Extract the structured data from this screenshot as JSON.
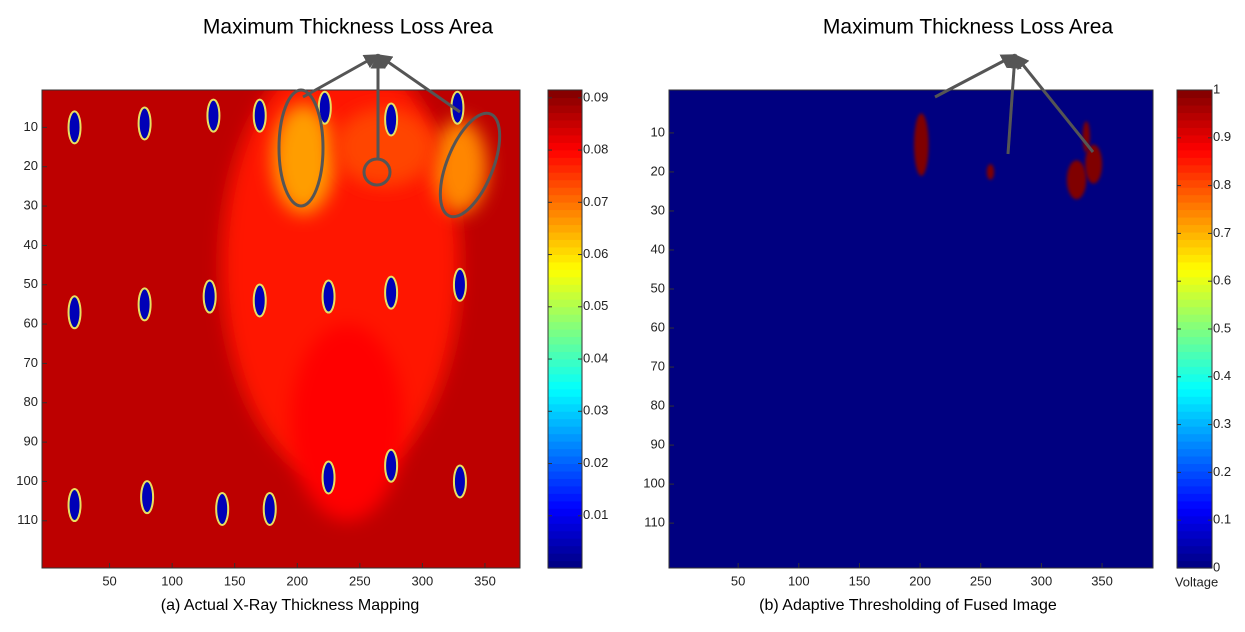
{
  "chart_data": [
    {
      "type": "heatmap",
      "annotation": "Maximum Thickness Loss Area",
      "caption": "(a) Actual X-Ray Thickness Mapping",
      "xlim": [
        -4,
        378
      ],
      "xticks": [
        50,
        100,
        150,
        200,
        250,
        300,
        350
      ],
      "ylim": [
        0.5,
        122
      ],
      "yticks": [
        10,
        20,
        30,
        40,
        50,
        60,
        70,
        80,
        90,
        100,
        110
      ],
      "clim": [
        0,
        0.0915
      ],
      "cticks": [
        0.01,
        0.02,
        0.03,
        0.04,
        0.05,
        0.06,
        0.07,
        0.08,
        0.09
      ],
      "background": 0.086,
      "regions": [
        {
          "x": 235,
          "y": 45,
          "rx": 95,
          "ry": 55,
          "value": 0.078
        },
        {
          "x": 240,
          "y": 85,
          "rx": 45,
          "ry": 25,
          "value": 0.08
        },
        {
          "x": 205,
          "y": 18,
          "rx": 25,
          "ry": 14,
          "value": 0.066
        },
        {
          "x": 330,
          "y": 20,
          "rx": 22,
          "ry": 12,
          "value": 0.068
        },
        {
          "x": 270,
          "y": 15,
          "rx": 40,
          "ry": 10,
          "value": 0.074
        }
      ],
      "holes": [
        {
          "x": 22,
          "y": 10,
          "value": 0.005
        },
        {
          "x": 133,
          "y": 7,
          "value": 0.005
        },
        {
          "x": 170,
          "y": 7,
          "value": 0.005
        },
        {
          "x": 222,
          "y": 5,
          "value": 0.005
        },
        {
          "x": 275,
          "y": 8,
          "value": 0.005
        },
        {
          "x": 328,
          "y": 5,
          "value": 0.005
        },
        {
          "x": 78,
          "y": 9,
          "value": 0.005
        },
        {
          "x": 22,
          "y": 57,
          "value": 0.005
        },
        {
          "x": 78,
          "y": 55,
          "value": 0.005
        },
        {
          "x": 130,
          "y": 53,
          "value": 0.005
        },
        {
          "x": 170,
          "y": 54,
          "value": 0.005
        },
        {
          "x": 225,
          "y": 53,
          "value": 0.005
        },
        {
          "x": 275,
          "y": 52,
          "value": 0.005
        },
        {
          "x": 330,
          "y": 50,
          "value": 0.005
        },
        {
          "x": 22,
          "y": 106,
          "value": 0.005
        },
        {
          "x": 80,
          "y": 104,
          "value": 0.005
        },
        {
          "x": 140,
          "y": 107,
          "value": 0.005
        },
        {
          "x": 178,
          "y": 107,
          "value": 0.005
        },
        {
          "x": 225,
          "y": 99,
          "value": 0.005
        },
        {
          "x": 275,
          "y": 96,
          "value": 0.005
        },
        {
          "x": 330,
          "y": 100,
          "value": 0.005
        }
      ]
    },
    {
      "type": "heatmap",
      "annotation": "Maximum Thickness Loss Area",
      "caption": "(b) Adaptive Thresholding of Fused Image",
      "xlim": [
        -7,
        392
      ],
      "xticks": [
        50,
        100,
        150,
        200,
        250,
        300,
        350
      ],
      "ylim": [
        -1,
        121.5
      ],
      "yticks": [
        10,
        20,
        30,
        40,
        50,
        60,
        70,
        80,
        90,
        100,
        110
      ],
      "clim": [
        0,
        1
      ],
      "cticks": [
        0,
        0.1,
        0.2,
        0.3,
        0.4,
        0.5,
        0.6,
        0.7,
        0.8,
        0.9,
        1
      ],
      "colorbar_label": "Voltage",
      "background": 0,
      "regions": [
        {
          "x": 201,
          "y": 13,
          "rx": 6,
          "ry": 8,
          "value": 1
        },
        {
          "x": 258,
          "y": 20,
          "rx": 3,
          "ry": 2,
          "value": 1
        },
        {
          "x": 329,
          "y": 22,
          "rx": 8,
          "ry": 5,
          "value": 1
        },
        {
          "x": 343,
          "y": 18,
          "rx": 7,
          "ry": 5,
          "value": 1
        },
        {
          "x": 337,
          "y": 11,
          "rx": 3,
          "ry": 4,
          "value": 1
        }
      ]
    }
  ]
}
